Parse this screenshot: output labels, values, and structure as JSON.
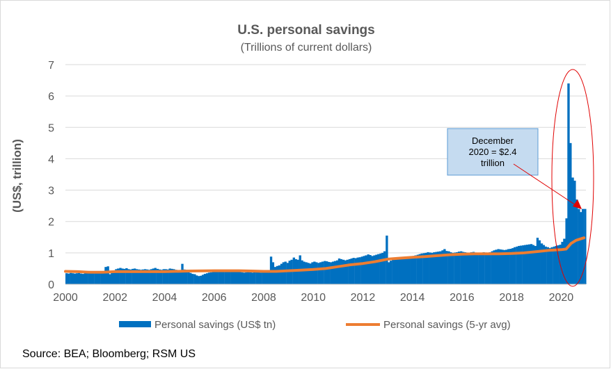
{
  "chart_data": {
    "type": "bar",
    "title": "U.S. personal savings",
    "subtitle": "(Trillions of current dollars)",
    "ylabel": "(US$, trillion)",
    "xlabel": "",
    "ylim": [
      0,
      7
    ],
    "xlim": [
      2000,
      2021
    ],
    "y_ticks": [
      "0",
      "1",
      "2",
      "3",
      "4",
      "5",
      "6",
      "7"
    ],
    "x_ticks": [
      "2000",
      "2002",
      "2004",
      "2006",
      "2008",
      "2010",
      "2012",
      "2014",
      "2016",
      "2018",
      "2020"
    ],
    "grid": true,
    "legend_position": "bottom",
    "colors": {
      "bars": "#0070c0",
      "avg": "#ed7d31",
      "annotation_fill": "#c5dbf0",
      "annotation_border": "#5b9bd5",
      "highlight": "#e00000"
    },
    "series": [
      {
        "name": "Personal savings (US$ tn)",
        "type": "bar",
        "x": [
          2000.0,
          2000.08,
          2000.17,
          2000.25,
          2000.33,
          2000.42,
          2000.5,
          2000.58,
          2000.67,
          2000.75,
          2000.83,
          2000.92,
          2001.0,
          2001.08,
          2001.17,
          2001.25,
          2001.33,
          2001.42,
          2001.5,
          2001.58,
          2001.67,
          2001.75,
          2001.83,
          2001.92,
          2002.0,
          2002.08,
          2002.17,
          2002.25,
          2002.33,
          2002.42,
          2002.5,
          2002.58,
          2002.67,
          2002.75,
          2002.83,
          2002.92,
          2003.0,
          2003.08,
          2003.17,
          2003.25,
          2003.33,
          2003.42,
          2003.5,
          2003.58,
          2003.67,
          2003.75,
          2003.83,
          2003.92,
          2004.0,
          2004.08,
          2004.17,
          2004.25,
          2004.33,
          2004.42,
          2004.5,
          2004.58,
          2004.67,
          2004.75,
          2004.83,
          2004.92,
          2005.0,
          2005.08,
          2005.17,
          2005.25,
          2005.33,
          2005.42,
          2005.5,
          2005.58,
          2005.67,
          2005.75,
          2005.83,
          2005.92,
          2006.0,
          2006.08,
          2006.17,
          2006.25,
          2006.33,
          2006.42,
          2006.5,
          2006.58,
          2006.67,
          2006.75,
          2006.83,
          2006.92,
          2007.0,
          2007.08,
          2007.17,
          2007.25,
          2007.33,
          2007.42,
          2007.5,
          2007.58,
          2007.67,
          2007.75,
          2007.83,
          2007.92,
          2008.0,
          2008.08,
          2008.17,
          2008.25,
          2008.33,
          2008.42,
          2008.5,
          2008.58,
          2008.67,
          2008.75,
          2008.83,
          2008.92,
          2009.0,
          2009.08,
          2009.17,
          2009.25,
          2009.33,
          2009.42,
          2009.5,
          2009.58,
          2009.67,
          2009.75,
          2009.83,
          2009.92,
          2010.0,
          2010.08,
          2010.17,
          2010.25,
          2010.33,
          2010.42,
          2010.5,
          2010.58,
          2010.67,
          2010.75,
          2010.83,
          2010.92,
          2011.0,
          2011.08,
          2011.17,
          2011.25,
          2011.33,
          2011.42,
          2011.5,
          2011.58,
          2011.67,
          2011.75,
          2011.83,
          2011.92,
          2012.0,
          2012.08,
          2012.17,
          2012.25,
          2012.33,
          2012.42,
          2012.5,
          2012.58,
          2012.67,
          2012.75,
          2012.83,
          2012.92,
          2013.0,
          2013.08,
          2013.17,
          2013.25,
          2013.33,
          2013.42,
          2013.5,
          2013.58,
          2013.67,
          2013.75,
          2013.83,
          2013.92,
          2014.0,
          2014.08,
          2014.17,
          2014.25,
          2014.33,
          2014.42,
          2014.5,
          2014.58,
          2014.67,
          2014.75,
          2014.83,
          2014.92,
          2015.0,
          2015.08,
          2015.17,
          2015.25,
          2015.33,
          2015.42,
          2015.5,
          2015.58,
          2015.67,
          2015.75,
          2015.83,
          2015.92,
          2016.0,
          2016.08,
          2016.17,
          2016.25,
          2016.33,
          2016.42,
          2016.5,
          2016.58,
          2016.67,
          2016.75,
          2016.83,
          2016.92,
          2017.0,
          2017.08,
          2017.17,
          2017.25,
          2017.33,
          2017.42,
          2017.5,
          2017.58,
          2017.67,
          2017.75,
          2017.83,
          2017.92,
          2018.0,
          2018.08,
          2018.17,
          2018.25,
          2018.33,
          2018.42,
          2018.5,
          2018.58,
          2018.67,
          2018.75,
          2018.83,
          2018.92,
          2019.0,
          2019.08,
          2019.17,
          2019.25,
          2019.33,
          2019.42,
          2019.5,
          2019.58,
          2019.67,
          2019.75,
          2019.83,
          2019.92,
          2020.0,
          2020.08,
          2020.17,
          2020.25,
          2020.33,
          2020.42,
          2020.5,
          2020.58,
          2020.67,
          2020.75,
          2020.83,
          2020.92
        ],
        "values": [
          0.35,
          0.34,
          0.36,
          0.35,
          0.34,
          0.35,
          0.36,
          0.34,
          0.33,
          0.35,
          0.36,
          0.35,
          0.38,
          0.37,
          0.39,
          0.4,
          0.41,
          0.4,
          0.39,
          0.55,
          0.57,
          0.32,
          0.4,
          0.42,
          0.48,
          0.5,
          0.52,
          0.5,
          0.49,
          0.51,
          0.48,
          0.47,
          0.49,
          0.5,
          0.48,
          0.47,
          0.46,
          0.47,
          0.48,
          0.47,
          0.46,
          0.48,
          0.5,
          0.52,
          0.49,
          0.47,
          0.46,
          0.48,
          0.48,
          0.47,
          0.5,
          0.49,
          0.48,
          0.46,
          0.44,
          0.45,
          0.65,
          0.47,
          0.46,
          0.44,
          0.36,
          0.33,
          0.32,
          0.28,
          0.26,
          0.27,
          0.3,
          0.33,
          0.35,
          0.37,
          0.38,
          0.39,
          0.4,
          0.41,
          0.42,
          0.41,
          0.4,
          0.41,
          0.42,
          0.4,
          0.39,
          0.41,
          0.42,
          0.41,
          0.4,
          0.38,
          0.37,
          0.38,
          0.39,
          0.38,
          0.37,
          0.39,
          0.4,
          0.38,
          0.37,
          0.4,
          0.42,
          0.43,
          0.44,
          0.88,
          0.7,
          0.55,
          0.58,
          0.6,
          0.65,
          0.7,
          0.72,
          0.68,
          0.75,
          0.78,
          0.85,
          0.8,
          0.78,
          0.92,
          0.76,
          0.72,
          0.7,
          0.68,
          0.66,
          0.7,
          0.72,
          0.7,
          0.68,
          0.7,
          0.72,
          0.74,
          0.73,
          0.71,
          0.7,
          0.72,
          0.74,
          0.76,
          0.82,
          0.8,
          0.78,
          0.76,
          0.78,
          0.8,
          0.82,
          0.84,
          0.83,
          0.85,
          0.86,
          0.88,
          0.9,
          0.92,
          0.95,
          0.93,
          0.9,
          0.92,
          0.94,
          0.96,
          0.98,
          1.0,
          1.05,
          1.55,
          0.7,
          0.75,
          0.78,
          0.8,
          0.82,
          0.84,
          0.83,
          0.82,
          0.85,
          0.87,
          0.88,
          0.89,
          0.9,
          0.92,
          0.94,
          0.96,
          0.98,
          0.99,
          1.0,
          1.02,
          1.01,
          1.0,
          1.02,
          1.03,
          1.04,
          1.05,
          1.08,
          1.12,
          1.06,
          1.05,
          1.02,
          1.0,
          1.01,
          1.02,
          1.04,
          1.05,
          1.03,
          1.02,
          1.01,
          1.0,
          1.02,
          1.03,
          1.01,
          1.0,
          0.99,
          1.0,
          1.02,
          1.01,
          1.0,
          1.02,
          1.05,
          1.08,
          1.1,
          1.12,
          1.11,
          1.1,
          1.09,
          1.1,
          1.12,
          1.13,
          1.15,
          1.18,
          1.2,
          1.22,
          1.23,
          1.24,
          1.25,
          1.26,
          1.27,
          1.28,
          1.25,
          1.22,
          1.48,
          1.4,
          1.3,
          1.25,
          1.2,
          1.18,
          1.15,
          1.18,
          1.2,
          1.22,
          1.24,
          1.26,
          1.35,
          1.45,
          2.1,
          6.4,
          4.5,
          3.4,
          3.3,
          2.7,
          2.4,
          2.3,
          2.4,
          2.4
        ]
      },
      {
        "name": "Personal savings (5-yr avg)",
        "type": "line",
        "x": [
          2000.0,
          2000.5,
          2001.0,
          2001.5,
          2002.0,
          2003.0,
          2004.0,
          2005.0,
          2006.0,
          2007.0,
          2007.5,
          2008.0,
          2008.5,
          2009.0,
          2009.5,
          2010.0,
          2010.5,
          2011.0,
          2011.5,
          2012.0,
          2012.5,
          2013.0,
          2013.5,
          2014.0,
          2014.5,
          2015.0,
          2015.5,
          2016.0,
          2016.5,
          2017.0,
          2017.5,
          2018.0,
          2018.5,
          2019.0,
          2019.5,
          2020.0,
          2020.2,
          2020.4,
          2020.6,
          2020.92
        ],
        "values": [
          0.41,
          0.4,
          0.38,
          0.38,
          0.4,
          0.4,
          0.4,
          0.42,
          0.43,
          0.43,
          0.42,
          0.41,
          0.41,
          0.43,
          0.45,
          0.47,
          0.5,
          0.56,
          0.62,
          0.66,
          0.72,
          0.8,
          0.83,
          0.86,
          0.88,
          0.91,
          0.94,
          0.96,
          0.97,
          0.97,
          0.97,
          0.98,
          1.0,
          1.04,
          1.08,
          1.1,
          1.12,
          1.3,
          1.4,
          1.48
        ]
      }
    ],
    "annotation": {
      "text": [
        "December",
        "2020 = $2.4",
        "trillion"
      ],
      "x": 2020.92,
      "y": 2.4
    },
    "source": "Source: BEA; Bloomberg; RSM US"
  }
}
